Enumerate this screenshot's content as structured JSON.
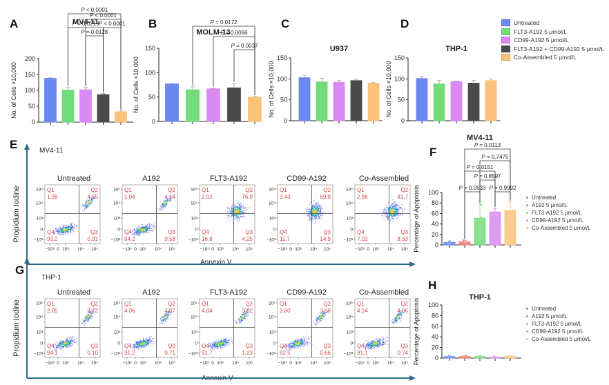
{
  "colors": {
    "untreated": "#6b87f2",
    "flt3": "#73dc7a",
    "cd99": "#d98af2",
    "combo": "#4a4a4a",
    "coassembled": "#fcc27a",
    "a192": "#e97a6a",
    "axis_arrow": "#2e6b87",
    "quadrant_text": "#d2474c"
  },
  "panels": {
    "A": "A",
    "B": "B",
    "C": "C",
    "D": "D",
    "E": "E",
    "F": "F",
    "G": "G",
    "H": "H"
  },
  "top_legend": [
    {
      "label": "Untreated",
      "color_key": "untreated"
    },
    {
      "label": "FLT3-A192 5 μmol/L",
      "color_key": "flt3"
    },
    {
      "label": "CD99-A192 5 μmol/L",
      "color_key": "cd99"
    },
    {
      "label": "FLT3-A192 + CD99-A192 5 μmol/L",
      "color_key": "combo"
    },
    {
      "label": "Co-Assembled 5 μmol/L",
      "color_key": "coassembled"
    }
  ],
  "side_legend": [
    {
      "label": "Untreated",
      "color_key": "untreated"
    },
    {
      "label": "A192 5 μmol/L",
      "color_key": "a192"
    },
    {
      "label": "FLT3-A192 5 μmol/L",
      "color_key": "flt3"
    },
    {
      "label": "CD99-A192 5 μmol/L",
      "color_key": "cd99"
    },
    {
      "label": "Co-Assembled 5 μmol/L",
      "color_key": "coassembled"
    }
  ],
  "flow": {
    "E": {
      "cell_line": "MV4-11",
      "x_label": "Annexin V",
      "y_label": "Propidium Iodine",
      "y_ticks": [
        "10⁵",
        "10⁴",
        "10³",
        "0",
        "−10³"
      ],
      "x_ticks": [
        "−10³",
        "0",
        "10³",
        "10⁴",
        "10⁵"
      ],
      "plots": [
        {
          "title": "Untreated",
          "Q1": "1.39",
          "Q2": "4.55",
          "Q3": "0.91",
          "Q4": "93.2"
        },
        {
          "title": "A192",
          "Q1": "1.04",
          "Q2": "4.14",
          "Q3": "0.58",
          "Q4": "94.2"
        },
        {
          "title": "FLT3-A192",
          "Q1": "2.02",
          "Q2": "76.9",
          "Q3": "4.25",
          "Q4": "16.8"
        },
        {
          "title": "CD99-A192",
          "Q1": "3.43",
          "Q2": "69.9",
          "Q3": "14.9",
          "Q4": "11.7"
        },
        {
          "title": "Co-Assembled",
          "Q1": "2.98",
          "Q2": "81.7",
          "Q3": "8.33",
          "Q4": "7.02"
        }
      ]
    },
    "G": {
      "cell_line": "THP-1",
      "x_label": "Annexin V",
      "y_label": "Propidium Iodine",
      "y_ticks": [
        "10⁵",
        "10⁴",
        "10³",
        "0",
        "−10³"
      ],
      "x_ticks": [
        "−10³",
        "0",
        "10³",
        "10⁴",
        "10⁵"
      ],
      "plots": [
        {
          "title": "Untreated",
          "Q1": "2.05",
          "Q2": "3.72",
          "Q3": "0.10",
          "Q4": "94.1"
        },
        {
          "title": "A192",
          "Q1": "4.06",
          "Q2": "4.07",
          "Q3": "0.71",
          "Q4": "91.2"
        },
        {
          "title": "FLT3-A192",
          "Q1": "4.04",
          "Q2": "3.02",
          "Q3": "1.23",
          "Q4": "91.7"
        },
        {
          "title": "CD99-A192",
          "Q1": "3.80",
          "Q2": "3.06",
          "Q3": "0.66",
          "Q4": "92.5"
        },
        {
          "title": "Co-Assembled",
          "Q1": "4.14",
          "Q2": "4.06",
          "Q3": "0.74",
          "Q4": "91.1"
        }
      ]
    }
  },
  "chart_data": [
    {
      "id": "A",
      "type": "bar",
      "title": "MV4-11",
      "ylabel": "No. of Cells ×10,000",
      "ylim": [
        0,
        200
      ],
      "yticks": [
        0,
        50,
        100,
        150,
        200
      ],
      "categories": [
        "Untreated",
        "FLT3-A192 5 μmol/L",
        "CD99-A192 5 μmol/L",
        "FLT3-A192 + CD99-A192 5 μmol/L",
        "Co-Assembled 5 μmol/L"
      ],
      "color_keys": [
        "untreated",
        "flt3",
        "cd99",
        "combo",
        "coassembled"
      ],
      "values": [
        138,
        101,
        102,
        87,
        33
      ],
      "errors": [
        3,
        8,
        7,
        3,
        3
      ],
      "comparisons": [
        {
          "from": 1,
          "to": 4,
          "label": "P < 0.0001",
          "level": 5
        },
        {
          "from": 2,
          "to": 4,
          "label": "P < 0.0001",
          "level": 4
        },
        {
          "from": 1,
          "to": 3,
          "label": "P = 0.0219",
          "level": 3
        },
        {
          "from": 3,
          "to": 4,
          "label": "P < 0.0001",
          "level": 3
        },
        {
          "from": 2,
          "to": 3,
          "label": "P = 0.0128",
          "level": 2
        }
      ]
    },
    {
      "id": "B",
      "type": "bar",
      "title": "MOLM-13",
      "ylabel": "No. of Cells ×10,000",
      "ylim": [
        0,
        150
      ],
      "yticks": [
        0,
        50,
        100,
        150
      ],
      "categories": [
        "Untreated",
        "FLT3-A192 5 μmol/L",
        "CD99-A192 5 μmol/L",
        "FLT3-A192 + CD99-A192 5 μmol/L",
        "Co-Assembled 5 μmol/L"
      ],
      "color_keys": [
        "untreated",
        "flt3",
        "cd99",
        "combo",
        "coassembled"
      ],
      "values": [
        77,
        65,
        67,
        69,
        50
      ],
      "errors": [
        1,
        6,
        1,
        9,
        1
      ],
      "comparisons": [
        {
          "from": 1,
          "to": 4,
          "label": "P = 0.0172",
          "level": 3
        },
        {
          "from": 2,
          "to": 4,
          "label": "P = 0.0066",
          "level": 2
        },
        {
          "from": 3,
          "to": 4,
          "label": "P = 0.0037",
          "level": 1
        }
      ]
    },
    {
      "id": "C",
      "type": "bar",
      "title": "U937",
      "ylabel": "No. of Cells ×10,000",
      "ylim": [
        0,
        150
      ],
      "yticks": [
        0,
        50,
        100,
        150
      ],
      "categories": [
        "Untreated",
        "FLT3-A192 5 μmol/L",
        "CD99-A192 5 μmol/L",
        "FLT3-A192 + CD99-A192 5 μmol/L",
        "Co-Assembled 5 μmol/L"
      ],
      "color_keys": [
        "untreated",
        "flt3",
        "cd99",
        "combo",
        "coassembled"
      ],
      "values": [
        103,
        93,
        92,
        96,
        90
      ],
      "errors": [
        6,
        8,
        4,
        3,
        1
      ],
      "comparisons": []
    },
    {
      "id": "D",
      "type": "bar",
      "title": "THP-1",
      "ylabel": "No. of Cells ×10,000",
      "ylim": [
        0,
        150
      ],
      "yticks": [
        0,
        50,
        100,
        150
      ],
      "categories": [
        "Untreated",
        "FLT3-A192 5 μmol/L",
        "CD99-A192 5 μmol/L",
        "FLT3-A192 + CD99-A192 5 μmol/L",
        "Co-Assembled 5 μmol/L"
      ],
      "color_keys": [
        "untreated",
        "flt3",
        "cd99",
        "combo",
        "coassembled"
      ],
      "values": [
        101,
        88,
        94,
        90,
        96
      ],
      "errors": [
        4,
        8,
        1,
        6,
        4
      ],
      "comparisons": []
    },
    {
      "id": "F",
      "type": "bar",
      "title": "MV4-11",
      "ylabel": "Percentage of Apoptosis",
      "ylim": [
        0,
        100
      ],
      "yticks": [
        0,
        20,
        40,
        60,
        80,
        100
      ],
      "categories": [
        "Untreated",
        "A192 5 μmol/L",
        "FLT3-A192 5 μmol/L",
        "CD99-A192 5 μmol/L",
        "Co-Assembled 5 μmol/L"
      ],
      "color_keys": [
        "untreated",
        "a192",
        "flt3",
        "cd99",
        "coassembled"
      ],
      "values": [
        5,
        6,
        51,
        63,
        66
      ],
      "errors": [
        2,
        3,
        27,
        7,
        16
      ],
      "points": [
        [
          3,
          5,
          7
        ],
        [
          3,
          6,
          9
        ],
        [
          24,
          52,
          77
        ],
        [
          57,
          63,
          69
        ],
        [
          50,
          65,
          81
        ]
      ],
      "comparisons": [
        {
          "from": 1,
          "to": 2,
          "label": "P = 0.0533",
          "level": 1
        },
        {
          "from": 3,
          "to": 4,
          "label": "P = 0.9992",
          "level": 1
        },
        {
          "from": 2,
          "to": 3,
          "label": "P = 0.8597",
          "level": 2
        },
        {
          "from": 1,
          "to": 3,
          "label": "P = 0.0151",
          "level": 3
        },
        {
          "from": 2,
          "to": 4,
          "label": "P = 0.7475",
          "level": 4
        },
        {
          "from": 1,
          "to": 4,
          "label": "P = 0.0113",
          "level": 5
        }
      ]
    },
    {
      "id": "H",
      "type": "bar",
      "title": "THP-1",
      "ylabel": "Percentage of Apoptosis",
      "ylim": [
        0,
        100
      ],
      "yticks": [
        0,
        20,
        40,
        60,
        80,
        100
      ],
      "categories": [
        "Untreated",
        "A192 5 μmol/L",
        "FLT3-A192 5 μmol/L",
        "CD99-A192 5 μmol/L",
        "Co-Assembled 5 μmol/L"
      ],
      "color_keys": [
        "untreated",
        "a192",
        "flt3",
        "cd99",
        "coassembled"
      ],
      "values": [
        3,
        3,
        3,
        2,
        3
      ],
      "errors": [
        1,
        1,
        1,
        1,
        1
      ],
      "points": [
        [
          2,
          3,
          4
        ],
        [
          2,
          3,
          4
        ],
        [
          2,
          3,
          4
        ],
        [
          1,
          2,
          3
        ],
        [
          2,
          3,
          4
        ]
      ],
      "comparisons": []
    }
  ]
}
